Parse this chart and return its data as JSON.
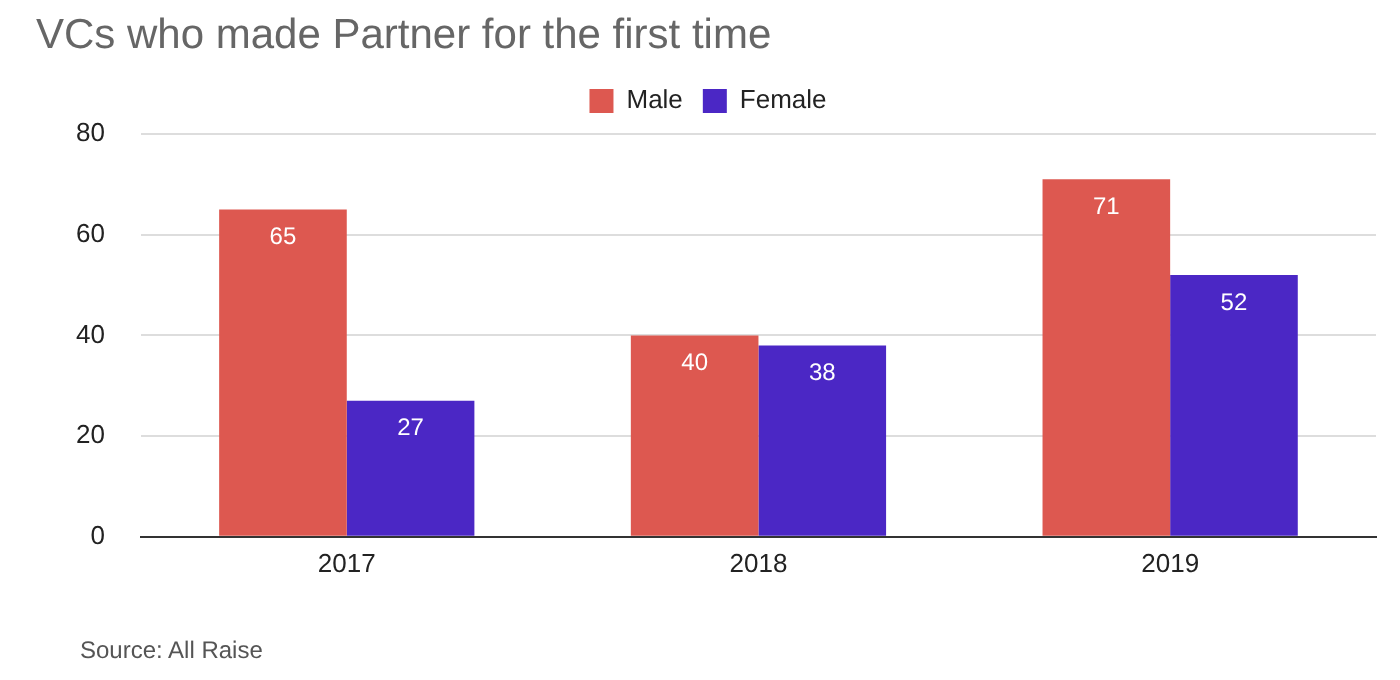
{
  "chart_data": {
    "type": "bar",
    "title": "VCs who made Partner for the first time",
    "categories": [
      "2017",
      "2018",
      "2019"
    ],
    "series": [
      {
        "name": "Male",
        "color": "#dd5850",
        "values": [
          65,
          40,
          71
        ]
      },
      {
        "name": "Female",
        "color": "#4b27c5",
        "values": [
          27,
          38,
          52
        ]
      }
    ],
    "ylim": [
      0,
      80
    ],
    "yticks": [
      0,
      20,
      40,
      60,
      80
    ],
    "grid": "y",
    "legend": "top",
    "data_labels": true,
    "annotations": [
      "Source: All Raise"
    ]
  }
}
